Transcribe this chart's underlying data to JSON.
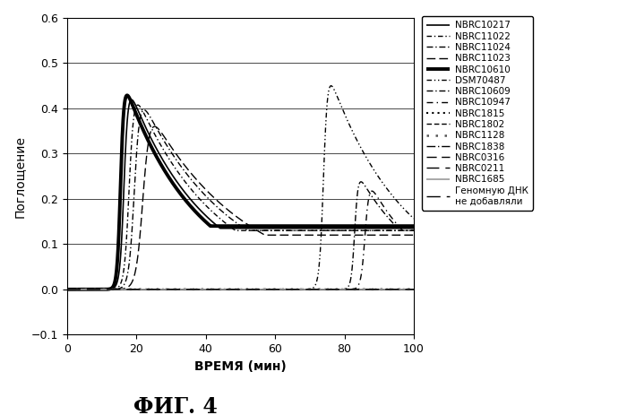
{
  "title": "ФИГ. 4",
  "xlabel": "ВРЕМЯ (мин)",
  "ylabel": "Поглощение",
  "xlim": [
    0,
    100
  ],
  "ylim": [
    -0.1,
    0.6
  ],
  "yticks": [
    -0.1,
    0.0,
    0.1,
    0.2,
    0.3,
    0.4,
    0.5,
    0.6
  ],
  "xticks": [
    0,
    20,
    40,
    60,
    80,
    100
  ],
  "curves": [
    {
      "label": "NBRC10217",
      "ls": "solid",
      "lw": 1.2,
      "color": "#000000",
      "t0": 16.5,
      "peak": 0.475,
      "k_rise": 0.6,
      "k_fall": 22,
      "bl": 0.135
    },
    {
      "label": "NBRC11022",
      "ls": "dashdot",
      "lw": 1.0,
      "color": "#000000",
      "t0": 18.0,
      "peak": 0.465,
      "k_rise": 0.7,
      "k_fall": 24,
      "bl": 0.13
    },
    {
      "label": "NBRC11024",
      "ls": "dash_dot2",
      "lw": 1.0,
      "color": "#000000",
      "t0": 19.5,
      "peak": 0.455,
      "k_rise": 0.8,
      "k_fall": 26,
      "bl": 0.13
    },
    {
      "label": "NBRC11023",
      "ls": "dashed",
      "lw": 1.0,
      "color": "#000000",
      "t0": 22.0,
      "peak": 0.42,
      "k_rise": 1.0,
      "k_fall": 28,
      "bl": 0.12
    },
    {
      "label": "NBRC10610",
      "ls": "solid",
      "lw": 2.8,
      "color": "#000000",
      "t0": 15.5,
      "peak": 0.48,
      "k_rise": 0.5,
      "k_fall": 21,
      "bl": 0.14
    },
    {
      "label": "DSM70487",
      "ls": "dashdotdot",
      "lw": 1.0,
      "color": "#000000",
      "t0": 74.0,
      "peak": 0.51,
      "k_rise": 0.6,
      "k_fall": 22,
      "bl": 0.14
    },
    {
      "label": "NBRC10609",
      "ls": "dashdot3",
      "lw": 1.0,
      "color": "#000000",
      "t0": 83.0,
      "peak": 0.27,
      "k_rise": 0.5,
      "k_fall": 18,
      "bl": 0.14
    },
    {
      "label": "NBRC10947",
      "ls": "loose_da",
      "lw": 1.0,
      "color": "#000000",
      "t0": 86.0,
      "peak": 0.255,
      "k_rise": 0.6,
      "k_fall": 16,
      "bl": 0.13
    },
    {
      "label": "NBRC1815",
      "ls": "dotted",
      "lw": 1.5,
      "color": "#000000",
      "flat": true
    },
    {
      "label": "NBRC1802",
      "ls": "dense_dash",
      "lw": 1.0,
      "color": "#000000",
      "flat": true
    },
    {
      "label": "NBRC1128",
      "ls": "dotted2",
      "lw": 1.8,
      "color": "#555555",
      "flat": true
    },
    {
      "label": "NBRC1838",
      "ls": "ld_dash",
      "lw": 1.0,
      "color": "#000000",
      "flat": true
    },
    {
      "label": "NBRC0316",
      "ls": "loose_d2",
      "lw": 1.0,
      "color": "#000000",
      "flat": true
    },
    {
      "label": "NBRC0211",
      "ls": "vloose_d",
      "lw": 1.0,
      "color": "#000000",
      "flat": true
    },
    {
      "label": "NBRC1685",
      "ls": "solid",
      "lw": 1.2,
      "color": "#999999",
      "flat": true
    },
    {
      "label": "Геномную ДНК\nне добавляли",
      "ls": "vloose_d2",
      "lw": 1.0,
      "color": "#000000",
      "flat": true
    }
  ]
}
